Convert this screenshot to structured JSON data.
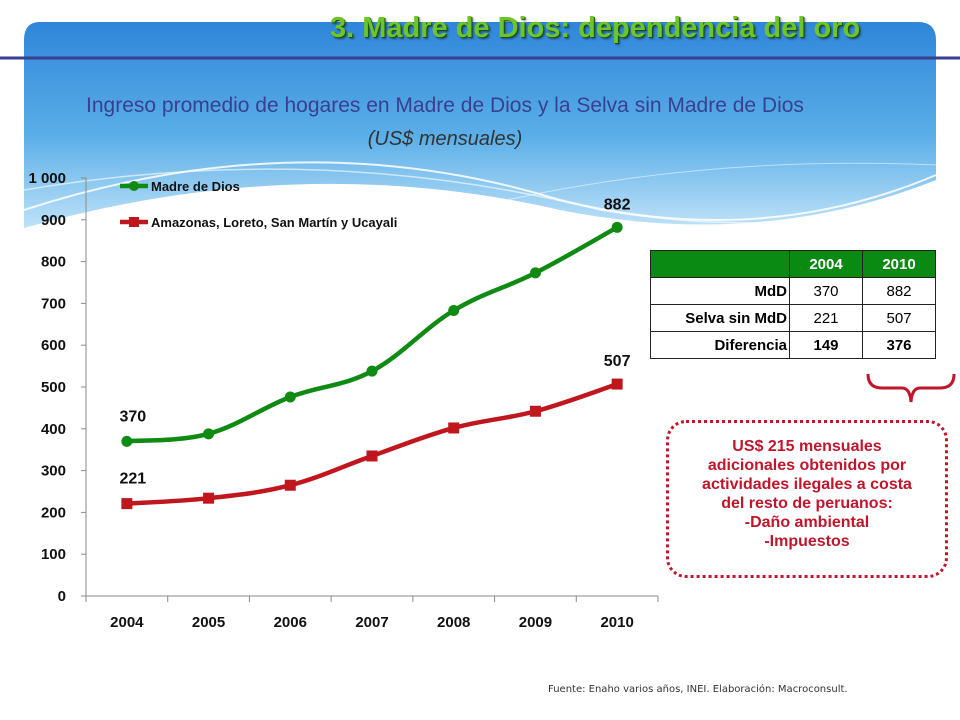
{
  "header": {
    "title": "3.  Madre de Dios: dependencia del oro",
    "banner_color": "#2f86d9",
    "rule_color": "#3a3f8f"
  },
  "subtitle": {
    "main": "Ingreso promedio de hogares en Madre de Dios y la Selva sin Madre de Dios",
    "unit": "(US$ mensuales)"
  },
  "chart_data": {
    "type": "line",
    "x": [
      "2004",
      "2005",
      "2006",
      "2007",
      "2008",
      "2009",
      "2010"
    ],
    "ylim": [
      0,
      1000
    ],
    "yticks": [
      "0",
      "100",
      "200",
      "300",
      "400",
      "500",
      "600",
      "700",
      "800",
      "900",
      "1 000"
    ],
    "ytick_values": [
      0,
      100,
      200,
      300,
      400,
      500,
      600,
      700,
      800,
      900,
      1000
    ],
    "grid": false,
    "legend_position": "top-left",
    "series": [
      {
        "name": "Madre de Dios",
        "color": "#0f8a12",
        "marker": "circle",
        "values": [
          370,
          388,
          476,
          538,
          683,
          773,
          882
        ]
      },
      {
        "name": "Amazonas, Loreto, San Martín y Ucayali",
        "color": "#c0161e",
        "marker": "square",
        "values": [
          221,
          234,
          265,
          335,
          402,
          442,
          507
        ]
      }
    ],
    "data_labels": [
      {
        "series": 0,
        "index": 0,
        "text": "370"
      },
      {
        "series": 0,
        "index": 6,
        "text": "882"
      },
      {
        "series": 1,
        "index": 0,
        "text": "221"
      },
      {
        "series": 1,
        "index": 6,
        "text": "507"
      }
    ]
  },
  "table": {
    "header_color": "#0a8a12",
    "columns": [
      "",
      "2004",
      "2010"
    ],
    "rows": [
      {
        "label": "MdD",
        "v2004": "370",
        "v2010": "882"
      },
      {
        "label": "Selva sin MdD",
        "v2004": "221",
        "v2010": "507"
      },
      {
        "label": "Diferencia",
        "v2004": "149",
        "v2010": "376"
      }
    ]
  },
  "callout": {
    "lines": [
      "US$ 215 mensuales",
      "adicionales obtenidos por",
      "actividades ilegales a costa",
      "del resto de peruanos:",
      "-Daño ambiental",
      "-Impuestos"
    ],
    "color": "#c0162c"
  },
  "source": "Fuente: Enaho varios años, INEI. Elaboración: Macroconsult."
}
